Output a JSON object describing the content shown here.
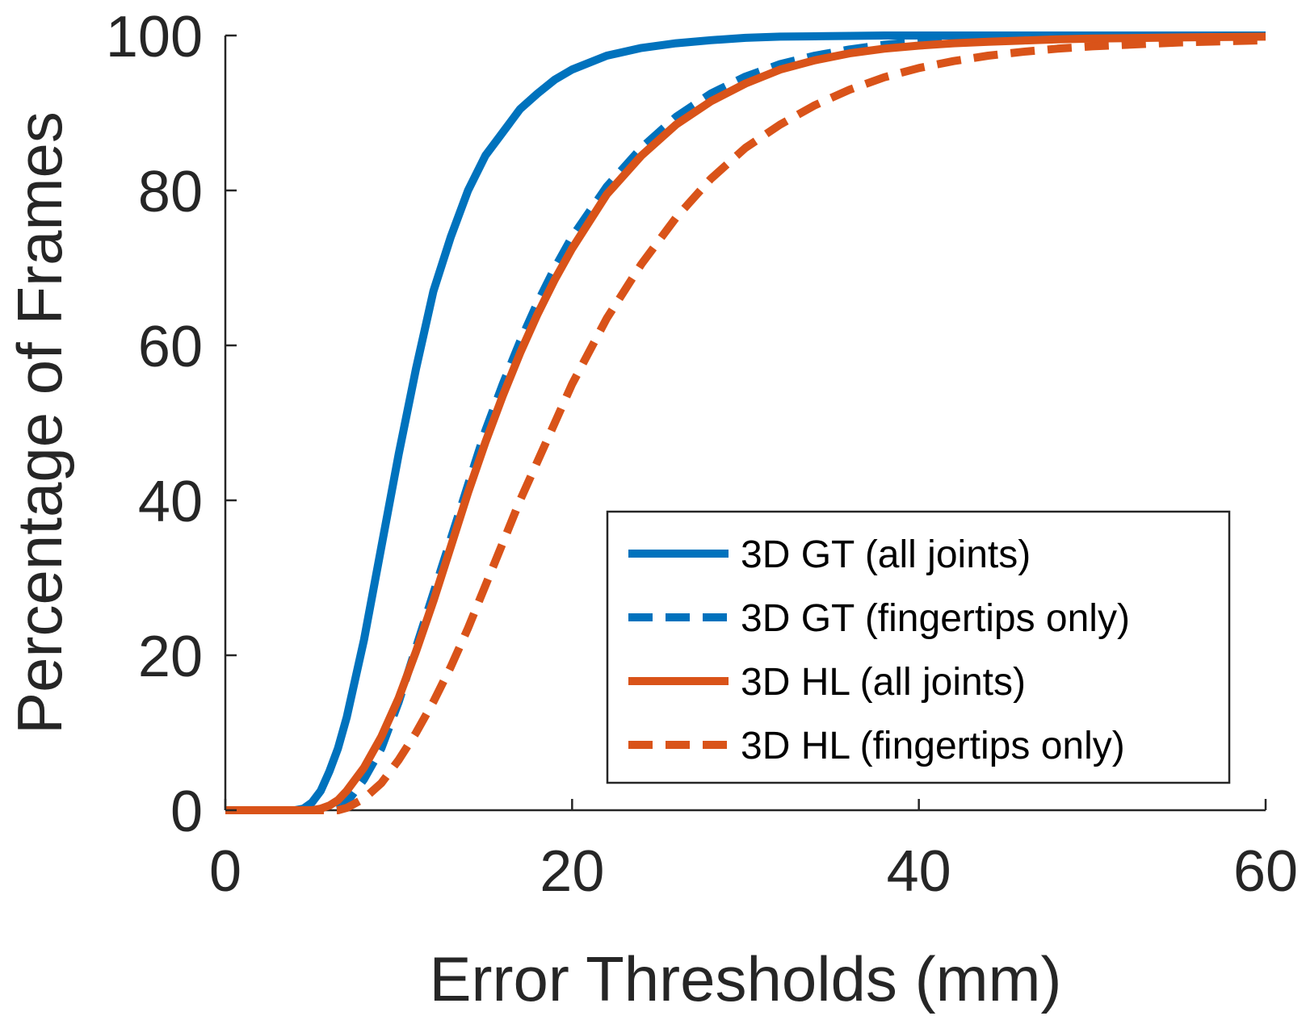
{
  "chart_data": {
    "type": "line",
    "title": "",
    "xlabel": "Error Thresholds (mm)",
    "ylabel": "Percentage of Frames",
    "xlim": [
      0,
      60
    ],
    "ylim": [
      0,
      100
    ],
    "xticks": [
      "0",
      "20",
      "40",
      "60"
    ],
    "yticks": [
      "0",
      "20",
      "40",
      "60",
      "80",
      "100"
    ],
    "grid": false,
    "legend_position": "bottom-right",
    "x": [
      0,
      2,
      4,
      4.5,
      5,
      5.5,
      6,
      6.5,
      7,
      8,
      9,
      10,
      11,
      12,
      13,
      14,
      15,
      16,
      17,
      18,
      19,
      20,
      22,
      24,
      26,
      28,
      30,
      32,
      34,
      36,
      38,
      40,
      42,
      44,
      46,
      48,
      50,
      55,
      60
    ],
    "series": [
      {
        "name": "3D GT (all joints)",
        "color": "#0072BD",
        "dash": "solid",
        "values": [
          0,
          0,
          0,
          0.2,
          1,
          2.5,
          5,
          8,
          12,
          22,
          34,
          46,
          57,
          67,
          74,
          80,
          84.5,
          87.5,
          90.5,
          92.5,
          94.3,
          95.6,
          97.4,
          98.4,
          99,
          99.4,
          99.7,
          99.85,
          99.9,
          99.95,
          100,
          100,
          100,
          100,
          100,
          100,
          100,
          100,
          100
        ]
      },
      {
        "name": "3D GT (fingertips only)",
        "color": "#0072BD",
        "dash": "dashed",
        "values": [
          0,
          0,
          0,
          0,
          0,
          0,
          0,
          0.2,
          1,
          4,
          8,
          14,
          21,
          28,
          35,
          42,
          49,
          55,
          60.5,
          65.5,
          70,
          74,
          80.5,
          85.5,
          89.5,
          92.5,
          94.7,
          96.3,
          97.4,
          98.2,
          98.8,
          99.2,
          99.5,
          99.7,
          99.8,
          99.85,
          99.9,
          99.95,
          100
        ]
      },
      {
        "name": "3D HL (all joints)",
        "color": "#D95319",
        "dash": "solid",
        "values": [
          0,
          0,
          0,
          0,
          0,
          0.2,
          0.6,
          1.3,
          2.5,
          5.5,
          9.5,
          14.5,
          20.5,
          27,
          34,
          41,
          47.5,
          53.5,
          59,
          64,
          68.5,
          72.5,
          79.5,
          84.5,
          88.5,
          91.5,
          93.8,
          95.6,
          96.8,
          97.7,
          98.3,
          98.7,
          99,
          99.2,
          99.35,
          99.5,
          99.6,
          99.75,
          99.85
        ]
      },
      {
        "name": "3D HL (fingertips only)",
        "color": "#D95319",
        "dash": "dashed",
        "values": [
          0,
          0,
          0,
          0,
          0,
          0,
          0,
          0,
          0.3,
          1.5,
          3.5,
          6.5,
          10,
          14,
          18.5,
          23.5,
          29,
          34.5,
          40,
          45,
          50,
          55,
          63.5,
          70.5,
          76.5,
          81.5,
          85.5,
          88.5,
          91,
          93,
          94.6,
          95.8,
          96.7,
          97.4,
          97.9,
          98.3,
          98.6,
          99.1,
          99.4
        ]
      }
    ]
  }
}
